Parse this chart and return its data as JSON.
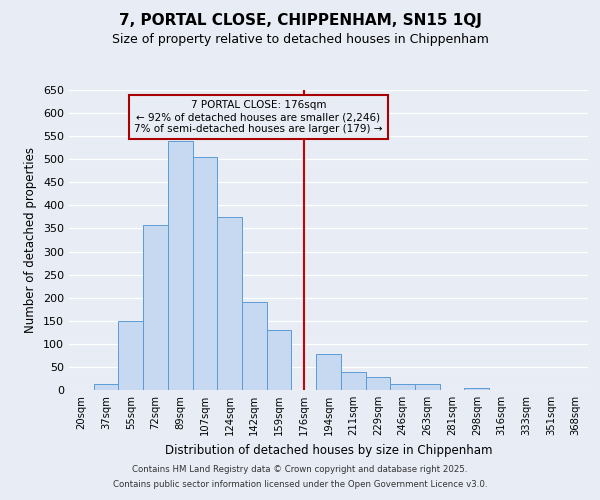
{
  "title": "7, PORTAL CLOSE, CHIPPENHAM, SN15 1QJ",
  "subtitle": "Size of property relative to detached houses in Chippenham",
  "xlabel": "Distribution of detached houses by size in Chippenham",
  "ylabel": "Number of detached properties",
  "bin_labels": [
    "20sqm",
    "37sqm",
    "55sqm",
    "72sqm",
    "89sqm",
    "107sqm",
    "124sqm",
    "142sqm",
    "159sqm",
    "176sqm",
    "194sqm",
    "211sqm",
    "229sqm",
    "246sqm",
    "263sqm",
    "281sqm",
    "298sqm",
    "316sqm",
    "333sqm",
    "351sqm",
    "368sqm"
  ],
  "bar_values": [
    0,
    13,
    150,
    358,
    540,
    505,
    375,
    190,
    130,
    0,
    78,
    40,
    28,
    13,
    13,
    0,
    5,
    0,
    0,
    0,
    0
  ],
  "bar_color": "#c6d9f0",
  "bar_edge_color": "#5b9bd5",
  "background_color": "#e8edf5",
  "grid_color": "#ffffff",
  "annotation_text_line1": "7 PORTAL CLOSE: 176sqm",
  "annotation_text_line2": "← 92% of detached houses are smaller (2,246)",
  "annotation_text_line3": "7% of semi-detached houses are larger (179) →",
  "annotation_box_edge_color": "#aa0000",
  "vline_color": "#cc0000",
  "vline_x_index": 9,
  "ylim": [
    0,
    650
  ],
  "yticks": [
    0,
    50,
    100,
    150,
    200,
    250,
    300,
    350,
    400,
    450,
    500,
    550,
    600,
    650
  ],
  "footer_line1": "Contains HM Land Registry data © Crown copyright and database right 2025.",
  "footer_line2": "Contains public sector information licensed under the Open Government Licence v3.0."
}
